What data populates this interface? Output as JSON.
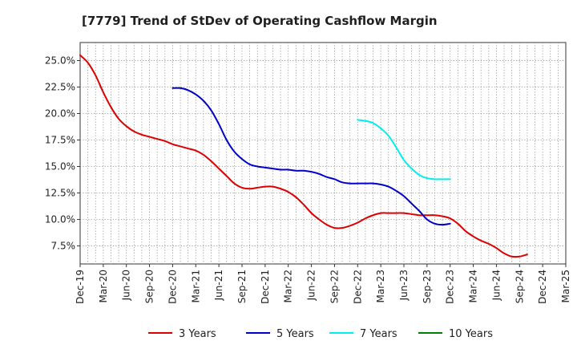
{
  "chart_data": {
    "type": "line",
    "title": "[7779]  Trend of StDev of Operating Cashflow Margin",
    "xlabel": "",
    "ylabel": "",
    "ylim": [
      5.8,
      26.7
    ],
    "y_ticks": [
      7.5,
      10.0,
      12.5,
      15.0,
      17.5,
      20.0,
      22.5,
      25.0
    ],
    "y_tick_labels": [
      "7.5%",
      "10.0%",
      "12.5%",
      "15.0%",
      "17.5%",
      "20.0%",
      "22.5%",
      "25.0%"
    ],
    "x_tick_labels": [
      "Dec-19",
      "Mar-20",
      "Jun-20",
      "Sep-20",
      "Dec-20",
      "Mar-21",
      "Jun-21",
      "Sep-21",
      "Dec-21",
      "Mar-22",
      "Jun-22",
      "Sep-22",
      "Dec-22",
      "Mar-23",
      "Jun-23",
      "Sep-23",
      "Dec-23",
      "Mar-24",
      "Jun-24",
      "Sep-24",
      "Dec-24",
      "Mar-25"
    ],
    "grid": true,
    "legend_position": "bottom",
    "series": [
      {
        "name": "3 Years",
        "color": "#dd0000",
        "points": [
          [
            "Dec-19",
            25.5
          ],
          [
            "Jan-20",
            24.8
          ],
          [
            "Feb-20",
            23.6
          ],
          [
            "Mar-20",
            22.0
          ],
          [
            "Apr-20",
            20.6
          ],
          [
            "May-20",
            19.5
          ],
          [
            "Jun-20",
            18.8
          ],
          [
            "Jul-20",
            18.3
          ],
          [
            "Aug-20",
            18.0
          ],
          [
            "Sep-20",
            17.8
          ],
          [
            "Oct-20",
            17.6
          ],
          [
            "Nov-20",
            17.4
          ],
          [
            "Dec-20",
            17.1
          ],
          [
            "Jan-21",
            16.9
          ],
          [
            "Feb-21",
            16.7
          ],
          [
            "Mar-21",
            16.5
          ],
          [
            "Apr-21",
            16.1
          ],
          [
            "May-21",
            15.5
          ],
          [
            "Jun-21",
            14.8
          ],
          [
            "Jul-21",
            14.1
          ],
          [
            "Aug-21",
            13.4
          ],
          [
            "Sep-21",
            13.0
          ],
          [
            "Oct-21",
            12.9
          ],
          [
            "Nov-21",
            13.0
          ],
          [
            "Dec-21",
            13.1
          ],
          [
            "Jan-22",
            13.1
          ],
          [
            "Feb-22",
            12.9
          ],
          [
            "Mar-22",
            12.6
          ],
          [
            "Apr-22",
            12.1
          ],
          [
            "May-22",
            11.4
          ],
          [
            "Jun-22",
            10.6
          ],
          [
            "Jul-22",
            10.0
          ],
          [
            "Aug-22",
            9.5
          ],
          [
            "Sep-22",
            9.2
          ],
          [
            "Oct-22",
            9.2
          ],
          [
            "Nov-22",
            9.4
          ],
          [
            "Dec-22",
            9.7
          ],
          [
            "Jan-23",
            10.1
          ],
          [
            "Feb-23",
            10.4
          ],
          [
            "Mar-23",
            10.6
          ],
          [
            "Apr-23",
            10.6
          ],
          [
            "May-23",
            10.6
          ],
          [
            "Jun-23",
            10.6
          ],
          [
            "Jul-23",
            10.5
          ],
          [
            "Aug-23",
            10.4
          ],
          [
            "Sep-23",
            10.4
          ],
          [
            "Oct-23",
            10.4
          ],
          [
            "Nov-23",
            10.3
          ],
          [
            "Dec-23",
            10.1
          ],
          [
            "Jan-24",
            9.6
          ],
          [
            "Feb-24",
            8.9
          ],
          [
            "Mar-24",
            8.4
          ],
          [
            "Apr-24",
            8.0
          ],
          [
            "May-24",
            7.7
          ],
          [
            "Jun-24",
            7.3
          ],
          [
            "Jul-24",
            6.8
          ],
          [
            "Aug-24",
            6.5
          ],
          [
            "Sep-24",
            6.5
          ],
          [
            "Oct-24",
            6.7
          ]
        ]
      },
      {
        "name": "5 Years",
        "color": "#0000cc",
        "points": [
          [
            "Dec-20",
            22.4
          ],
          [
            "Jan-21",
            22.4
          ],
          [
            "Feb-21",
            22.2
          ],
          [
            "Mar-21",
            21.8
          ],
          [
            "Apr-21",
            21.2
          ],
          [
            "May-21",
            20.3
          ],
          [
            "Jun-21",
            19.0
          ],
          [
            "Jul-21",
            17.5
          ],
          [
            "Aug-21",
            16.4
          ],
          [
            "Sep-21",
            15.7
          ],
          [
            "Oct-21",
            15.2
          ],
          [
            "Nov-21",
            15.0
          ],
          [
            "Dec-21",
            14.9
          ],
          [
            "Jan-22",
            14.8
          ],
          [
            "Feb-22",
            14.7
          ],
          [
            "Mar-22",
            14.7
          ],
          [
            "Apr-22",
            14.6
          ],
          [
            "May-22",
            14.6
          ],
          [
            "Jun-22",
            14.5
          ],
          [
            "Jul-22",
            14.3
          ],
          [
            "Aug-22",
            14.0
          ],
          [
            "Sep-22",
            13.8
          ],
          [
            "Oct-22",
            13.5
          ],
          [
            "Nov-22",
            13.4
          ],
          [
            "Dec-22",
            13.4
          ],
          [
            "Jan-23",
            13.4
          ],
          [
            "Feb-23",
            13.4
          ],
          [
            "Mar-23",
            13.3
          ],
          [
            "Apr-23",
            13.1
          ],
          [
            "May-23",
            12.7
          ],
          [
            "Jun-23",
            12.2
          ],
          [
            "Jul-23",
            11.5
          ],
          [
            "Aug-23",
            10.8
          ],
          [
            "Sep-23",
            10.0
          ],
          [
            "Oct-23",
            9.6
          ],
          [
            "Nov-23",
            9.5
          ],
          [
            "Dec-23",
            9.6
          ]
        ]
      },
      {
        "name": "7 Years",
        "color": "#00eeee",
        "points": [
          [
            "Dec-22",
            19.4
          ],
          [
            "Jan-23",
            19.3
          ],
          [
            "Feb-23",
            19.1
          ],
          [
            "Mar-23",
            18.6
          ],
          [
            "Apr-23",
            17.9
          ],
          [
            "May-23",
            16.8
          ],
          [
            "Jun-23",
            15.6
          ],
          [
            "Jul-23",
            14.8
          ],
          [
            "Aug-23",
            14.2
          ],
          [
            "Sep-23",
            13.9
          ],
          [
            "Oct-23",
            13.8
          ],
          [
            "Nov-23",
            13.8
          ],
          [
            "Dec-23",
            13.8
          ]
        ]
      },
      {
        "name": "10 Years",
        "color": "#008000",
        "points": []
      }
    ]
  }
}
